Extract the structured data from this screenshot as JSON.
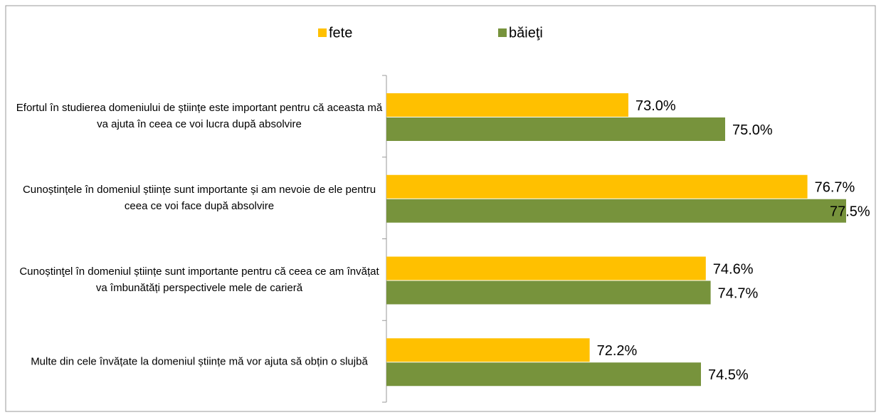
{
  "chart_data": {
    "type": "bar",
    "orientation": "horizontal",
    "categories": [
      "Efortul în studierea domeniului de științe este important pentru că aceasta mă va ajuta în ceea ce voi lucra după absolvire",
      "Cunoștințele în domeniul științe sunt importante și am nevoie de ele pentru ceea ce voi face după absolvire",
      "Cunoștinţel în domeniul științe sunt importante pentru că ceea ce am învățat va îmbunătăți perspectivele mele de carieră",
      "Multe din cele învățate la domeniul științe mă vor ajuta să obțin o slujbă"
    ],
    "series": [
      {
        "name": "fete",
        "color": "#ffc000",
        "values": [
          73.0,
          76.7,
          74.6,
          72.2
        ],
        "value_labels": [
          "73.0%",
          "76.7%",
          "74.6%",
          "72.2%"
        ]
      },
      {
        "name": "băieţi",
        "color": "#77933c",
        "values": [
          75.0,
          77.5,
          74.7,
          74.5
        ],
        "value_labels": [
          "75.0%",
          "77.5%",
          "74.7%",
          "74.5%"
        ]
      }
    ],
    "xlim": [
      68,
      78
    ],
    "legend": "top"
  }
}
